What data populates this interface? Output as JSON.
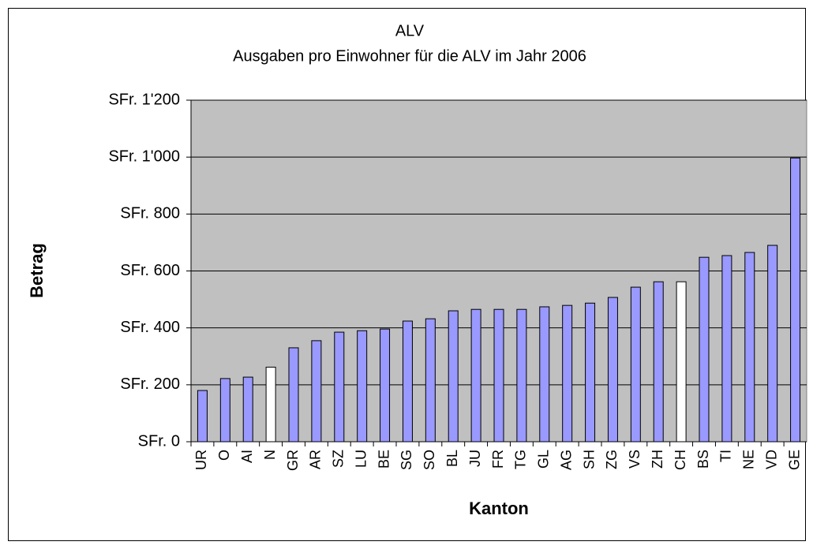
{
  "chart_data": {
    "type": "bar",
    "title": "ALV",
    "subtitle": "Ausgaben pro Einwohner für die ALV im Jahr 2006",
    "x_label": "Kanton",
    "y_label": "Betrag",
    "categories": [
      "UR",
      "O",
      "AI",
      "N",
      "GR",
      "AR",
      "SZ",
      "LU",
      "BE",
      "SG",
      "SO",
      "BL",
      "JU",
      "FR",
      "TG",
      "GL",
      "AG",
      "SH",
      "ZG",
      "VS",
      "ZH",
      "CH",
      "BS",
      "TI",
      "NE",
      "VD",
      "GE"
    ],
    "values": [
      180,
      222,
      227,
      262,
      330,
      355,
      385,
      390,
      396,
      424,
      432,
      460,
      465,
      465,
      465,
      474,
      479,
      487,
      507,
      543,
      562,
      562,
      648,
      654,
      665,
      690,
      997
    ],
    "colors": [
      "#9999ff",
      "#9999ff",
      "#9999ff",
      "#ffffff",
      "#9999ff",
      "#9999ff",
      "#9999ff",
      "#9999ff",
      "#9999ff",
      "#9999ff",
      "#9999ff",
      "#9999ff",
      "#9999ff",
      "#9999ff",
      "#9999ff",
      "#9999ff",
      "#9999ff",
      "#9999ff",
      "#9999ff",
      "#9999ff",
      "#9999ff",
      "#ffffff",
      "#9999ff",
      "#9999ff",
      "#9999ff",
      "#9999ff",
      "#9999ff"
    ],
    "plot_background": "#c0c0c0",
    "ylim": [
      0,
      1200
    ],
    "yticks": [
      {
        "value": 0,
        "label": "SFr. 0"
      },
      {
        "value": 200,
        "label": "SFr. 200"
      },
      {
        "value": 400,
        "label": "SFr. 400"
      },
      {
        "value": 600,
        "label": "SFr. 600"
      },
      {
        "value": 800,
        "label": "SFr. 800"
      },
      {
        "value": 1000,
        "label": "SFr. 1'000"
      },
      {
        "value": 1200,
        "label": "SFr. 1'200"
      }
    ],
    "grid": true
  }
}
